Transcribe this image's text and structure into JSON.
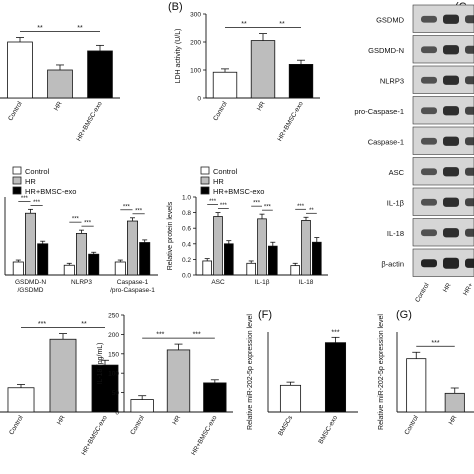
{
  "colors": {
    "control": "#ffffff",
    "hr": "#bdbdbd",
    "hr_bmsc_exo": "#000000",
    "stroke": "#222222",
    "blot_band": "#111111",
    "blot_bg": "#d6d6d6"
  },
  "panel_letters": {
    "b": "(B)",
    "c": "(C",
    "f": "(F)",
    "g": "(G)"
  },
  "legend": {
    "control": "Control",
    "hr": "HR",
    "hr_bmsc_exo": "HR+BMSC-exo"
  },
  "western_blot": {
    "labels": [
      "GSDMD",
      "GSDMD-N",
      "NLRP3",
      "pro-Caspase-1",
      "Caspase-1",
      "ASC",
      "IL-1β",
      "IL-18",
      "β-actin"
    ],
    "lanes": [
      "Control",
      "HR",
      "HR+"
    ]
  },
  "chart_data": [
    {
      "id": "a_top",
      "type": "bar",
      "categories": [
        "Control",
        "HR",
        "HR+BMSC-exo"
      ],
      "values": [
        100,
        50,
        84
      ],
      "errors": [
        8,
        9,
        10
      ],
      "ylim": [
        0,
        150
      ],
      "yticks": [
        "0",
        "50",
        "100",
        "150"
      ],
      "ylabel": "",
      "sig": [
        {
          "from": 0,
          "to": 1,
          "label": "**"
        },
        {
          "from": 1,
          "to": 2,
          "label": "**"
        }
      ]
    },
    {
      "id": "b",
      "type": "bar",
      "categories": [
        "Control",
        "HR",
        "HR+BMSC-exo"
      ],
      "values": [
        92,
        205,
        120
      ],
      "errors": [
        12,
        25,
        15
      ],
      "ylim": [
        0,
        300
      ],
      "yticks": [
        "0",
        "100",
        "200",
        "300"
      ],
      "ylabel": "LDH activity (U/L)",
      "sig": [
        {
          "from": 0,
          "to": 1,
          "label": "**"
        },
        {
          "from": 1,
          "to": 2,
          "label": "**"
        }
      ]
    },
    {
      "id": "a_mid",
      "type": "bar",
      "groups": [
        "GSDMD-N\n/GSDMD",
        "NLRP3",
        "Caspase-1\n/pro-Caspase-1"
      ],
      "series_values": [
        [
          0.2,
          0.95,
          0.48
        ],
        [
          0.15,
          0.64,
          0.32
        ],
        [
          0.2,
          0.83,
          0.5
        ]
      ],
      "errors": [
        [
          0.03,
          0.06,
          0.04
        ],
        [
          0.03,
          0.05,
          0.03
        ],
        [
          0.03,
          0.05,
          0.04
        ]
      ],
      "ylim": [
        0,
        1.2
      ],
      "yticks": [],
      "ylabel": "",
      "sig_label": "***"
    },
    {
      "id": "c_mid",
      "type": "bar",
      "groups": [
        "ASC",
        "IL-1β",
        "IL-18"
      ],
      "series_values": [
        [
          0.18,
          0.75,
          0.4
        ],
        [
          0.15,
          0.72,
          0.37
        ],
        [
          0.12,
          0.7,
          0.42
        ]
      ],
      "errors": [
        [
          0.03,
          0.05,
          0.04
        ],
        [
          0.03,
          0.06,
          0.05
        ],
        [
          0.03,
          0.04,
          0.06
        ]
      ],
      "ylim": [
        0,
        1.0
      ],
      "yticks": [
        "0.0",
        "0.2",
        "0.4",
        "0.6",
        "0.8",
        "1.0"
      ],
      "ylabel": "Relative protein levels",
      "sig_labels": [
        [
          "***",
          "***"
        ],
        [
          "***",
          "***"
        ],
        [
          "***",
          "**"
        ]
      ]
    },
    {
      "id": "d",
      "type": "bar",
      "categories": [
        "Control",
        "HR",
        "HR+BMSC-exo"
      ],
      "values": [
        30,
        90,
        58
      ],
      "errors": [
        4,
        7,
        6
      ],
      "ylim": [
        0,
        120
      ],
      "yticks": [],
      "ylabel": "",
      "sig": [
        {
          "from": 0,
          "to": 1,
          "label": "***"
        },
        {
          "from": 1,
          "to": 2,
          "label": "**"
        }
      ]
    },
    {
      "id": "e",
      "type": "bar",
      "categories": [
        "Control",
        "HR",
        "HR+BMSC-exo"
      ],
      "values": [
        32,
        160,
        75
      ],
      "errors": [
        10,
        15,
        8
      ],
      "ylim": [
        0,
        250
      ],
      "yticks": [
        "0",
        "50",
        "100",
        "150",
        "200",
        "250"
      ],
      "ylabel": "IL-18 (pg/mL)",
      "sig": [
        {
          "from": 0,
          "to": 1,
          "label": "***"
        },
        {
          "from": 1,
          "to": 2,
          "label": "***"
        }
      ]
    },
    {
      "id": "f",
      "type": "bar",
      "categories": [
        "BMSCs",
        "BMSC-exo"
      ],
      "values": [
        1.0,
        2.6
      ],
      "errors": [
        0.12,
        0.2
      ],
      "ylim": [
        0,
        3
      ],
      "yticks": [],
      "ylabel": "Relative miR-202-5p expression level",
      "sig_top": "***"
    },
    {
      "id": "g",
      "type": "bar",
      "categories": [
        "Control",
        "HR"
      ],
      "values": [
        1.0,
        0.35
      ],
      "errors": [
        0.12,
        0.1
      ],
      "ylim": [
        0,
        1.5
      ],
      "yticks": [],
      "ylabel": "Relative miR-202-5p expression level",
      "sig": [
        {
          "from": 0,
          "to": 1,
          "label": "***"
        }
      ]
    }
  ]
}
